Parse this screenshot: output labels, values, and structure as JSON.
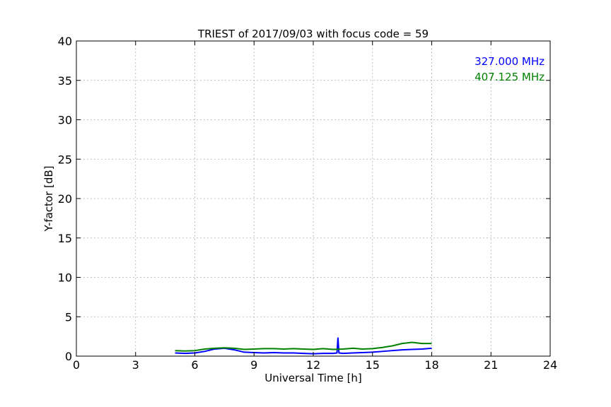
{
  "chart_data": {
    "type": "line",
    "title": "TRIEST of 2017/09/03 with focus code = 59",
    "xlabel": "Universal Time [h]",
    "ylabel": "Y-factor [dB]",
    "xlim": [
      0,
      24
    ],
    "ylim": [
      0,
      40
    ],
    "xticks": [
      0,
      3,
      6,
      9,
      12,
      15,
      18,
      21,
      24
    ],
    "yticks": [
      0,
      5,
      10,
      15,
      20,
      25,
      30,
      35,
      40
    ],
    "grid": true,
    "legend_position": "top-right",
    "series": [
      {
        "name": "327.000 MHz",
        "color": "#0000ff",
        "points": [
          [
            5.0,
            0.4
          ],
          [
            5.5,
            0.35
          ],
          [
            6.0,
            0.4
          ],
          [
            6.5,
            0.6
          ],
          [
            7.0,
            0.9
          ],
          [
            7.5,
            1.0
          ],
          [
            8.0,
            0.8
          ],
          [
            8.5,
            0.5
          ],
          [
            9.0,
            0.45
          ],
          [
            9.5,
            0.4
          ],
          [
            10.0,
            0.45
          ],
          [
            10.5,
            0.4
          ],
          [
            11.0,
            0.4
          ],
          [
            11.5,
            0.35
          ],
          [
            12.0,
            0.3
          ],
          [
            12.5,
            0.35
          ],
          [
            13.0,
            0.35
          ],
          [
            13.2,
            0.4
          ],
          [
            13.25,
            2.3
          ],
          [
            13.3,
            0.4
          ],
          [
            13.5,
            0.35
          ],
          [
            14.0,
            0.4
          ],
          [
            14.5,
            0.45
          ],
          [
            15.0,
            0.5
          ],
          [
            15.5,
            0.6
          ],
          [
            16.0,
            0.7
          ],
          [
            16.5,
            0.8
          ],
          [
            17.0,
            0.85
          ],
          [
            17.5,
            0.9
          ],
          [
            18.0,
            1.0
          ]
        ]
      },
      {
        "name": "407.125 MHz",
        "color": "#008000",
        "points": [
          [
            5.0,
            0.7
          ],
          [
            5.5,
            0.65
          ],
          [
            6.0,
            0.7
          ],
          [
            6.5,
            0.9
          ],
          [
            7.0,
            1.0
          ],
          [
            7.5,
            1.05
          ],
          [
            8.0,
            1.0
          ],
          [
            8.5,
            0.85
          ],
          [
            9.0,
            0.9
          ],
          [
            9.5,
            0.95
          ],
          [
            10.0,
            0.95
          ],
          [
            10.5,
            0.9
          ],
          [
            11.0,
            0.95
          ],
          [
            11.5,
            0.9
          ],
          [
            12.0,
            0.85
          ],
          [
            12.5,
            0.95
          ],
          [
            13.0,
            0.85
          ],
          [
            13.5,
            0.9
          ],
          [
            14.0,
            1.0
          ],
          [
            14.5,
            0.9
          ],
          [
            15.0,
            0.95
          ],
          [
            15.5,
            1.1
          ],
          [
            16.0,
            1.3
          ],
          [
            16.5,
            1.6
          ],
          [
            17.0,
            1.75
          ],
          [
            17.5,
            1.6
          ],
          [
            18.0,
            1.6
          ]
        ]
      }
    ]
  }
}
